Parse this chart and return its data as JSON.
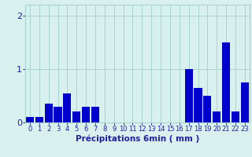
{
  "categories": [
    0,
    1,
    2,
    3,
    4,
    5,
    6,
    7,
    8,
    9,
    10,
    11,
    12,
    13,
    14,
    15,
    16,
    17,
    18,
    19,
    20,
    21,
    22,
    23
  ],
  "values": [
    0.1,
    0.1,
    0.35,
    0.3,
    0.55,
    0.2,
    0.3,
    0.3,
    0.0,
    0.0,
    0.0,
    0.0,
    0.0,
    0.0,
    0.0,
    0.0,
    0.0,
    1.0,
    0.65,
    0.5,
    0.2,
    1.5,
    0.2,
    0.75
  ],
  "bar_color": "#0000cc",
  "bg_color": "#d8f0ee",
  "grid_color": "#aad4d0",
  "axis_color": "#2020a0",
  "xlabel": "Précipitations 6min ( mm )",
  "xlabel_fontsize": 7.5,
  "tick_fontsize": 6,
  "ylim": [
    0,
    2.2
  ],
  "yticks": [
    0,
    1,
    2
  ],
  "title": ""
}
